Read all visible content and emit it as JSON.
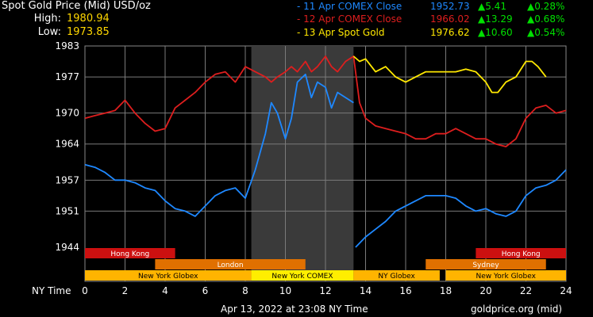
{
  "header": {
    "title": "Spot Gold Price (Mid) USD/oz",
    "high_label": "High:",
    "high_value": "1980.94",
    "low_label": "Low:",
    "low_value": "1973.85"
  },
  "legend": [
    {
      "name": "- 11 Apr COMEX Close",
      "price": "1952.73",
      "change": "▲5.41",
      "pct": "▲0.28%",
      "color": "#1e88ff"
    },
    {
      "name": "- 12 Apr COMEX Close",
      "price": "1966.02",
      "change": "▲13.29",
      "pct": "▲0.68%",
      "color": "#dd1e1e"
    },
    {
      "name": "- 13 Apr Spot Gold",
      "price": "1976.62",
      "change": "▲10.60",
      "pct": "▲0.54%",
      "color": "#ffe800"
    }
  ],
  "footer": {
    "date": "Apr 13, 2022 at 23:08 NY Time",
    "source": "goldprice.org (mid)"
  },
  "chart_data": {
    "type": "line",
    "xlabel": "NY Time",
    "x_ticks": [
      0,
      2,
      4,
      6,
      8,
      10,
      12,
      14,
      16,
      18,
      20,
      22,
      24
    ],
    "xlim": [
      0,
      24
    ],
    "y_ticks": [
      1944,
      1951,
      1957,
      1964,
      1970,
      1977,
      1983
    ],
    "ylim": [
      1944,
      1983
    ],
    "grid": true,
    "highlight_range": [
      8.3,
      13.4
    ],
    "sessions": [
      {
        "name": "Hong Kong",
        "row": 0,
        "start": 0,
        "end": 4.5,
        "color": "#cc1010"
      },
      {
        "name": "Hong Kong",
        "row": 0,
        "start": 19.5,
        "end": 24,
        "color": "#cc1010"
      },
      {
        "name": "London",
        "row": 1,
        "start": 3.5,
        "end": 11,
        "color": "#e07000"
      },
      {
        "name": "Sydney",
        "row": 1,
        "start": 17,
        "end": 23,
        "color": "#e07000"
      },
      {
        "name": "New York Globex",
        "row": 2,
        "start": 0,
        "end": 8.3,
        "color": "#ffb400"
      },
      {
        "name": "New York COMEX",
        "row": 2,
        "start": 8.3,
        "end": 13.4,
        "color": "#ffee00"
      },
      {
        "name": "NY Globex",
        "row": 2,
        "start": 13.4,
        "end": 17.7,
        "color": "#ffb400"
      },
      {
        "name": "New York Globex",
        "row": 2,
        "start": 18,
        "end": 24,
        "color": "#ffb400"
      }
    ],
    "series": [
      {
        "name": "11 Apr COMEX Close",
        "color": "#1e88ff",
        "x": [
          0,
          0.5,
          1,
          1.5,
          2,
          2.5,
          3,
          3.5,
          4,
          4.5,
          5,
          5.5,
          6,
          6.5,
          7,
          7.5,
          8,
          8.5,
          9,
          9.3,
          9.6,
          10,
          10.3,
          10.6,
          11,
          11.3,
          11.6,
          12,
          12.3,
          12.6,
          13,
          13.4,
          13.5,
          14,
          14.5,
          15,
          15.5,
          16,
          16.5,
          17,
          17.5,
          18,
          18.5,
          19,
          19.5,
          20,
          20.5,
          21,
          21.5,
          22,
          22.5,
          23,
          23.5,
          24
        ],
        "y": [
          1960,
          1959.5,
          1958.5,
          1957,
          1957,
          1956.5,
          1955.5,
          1955,
          1953,
          1951.5,
          1951,
          1950,
          1952,
          1954,
          1955,
          1955.5,
          1953.5,
          1959,
          1966,
          1972,
          1970,
          1965,
          1969,
          1976,
          1977.5,
          1973,
          1976,
          1975,
          1971,
          1974,
          1973,
          1972,
          1944,
          1946,
          1947.5,
          1949,
          1951,
          1952,
          1953,
          1954,
          1954,
          1954,
          1953.5,
          1952,
          1951,
          1951.5,
          1950.5,
          1950,
          1951,
          1954,
          1955.5,
          1956,
          1957,
          1959
        ]
      },
      {
        "name": "12 Apr COMEX Close",
        "color": "#dd1e1e",
        "x": [
          0,
          0.5,
          1,
          1.5,
          2,
          2.5,
          3,
          3.5,
          4,
          4.5,
          5,
          5.5,
          6,
          6.5,
          7,
          7.5,
          8,
          8.5,
          9,
          9.3,
          9.6,
          10,
          10.3,
          10.6,
          11,
          11.3,
          11.6,
          12,
          12.3,
          12.6,
          13,
          13.4,
          13.7,
          14,
          14.5,
          15,
          15.5,
          16,
          16.5,
          17,
          17.5,
          18,
          18.5,
          19,
          19.5,
          20,
          20.5,
          21,
          21.5,
          22,
          22.5,
          23,
          23.5,
          24
        ],
        "y": [
          1969,
          1969.5,
          1970,
          1970.5,
          1972.5,
          1970,
          1968,
          1966.5,
          1967,
          1971,
          1972.5,
          1974,
          1976,
          1977.5,
          1978,
          1976,
          1979,
          1978,
          1977,
          1976,
          1977,
          1978,
          1979,
          1978,
          1980,
          1978,
          1979,
          1981,
          1979,
          1978,
          1980,
          1981,
          1972,
          1969,
          1967.5,
          1967,
          1966.5,
          1966,
          1965,
          1965,
          1966,
          1966,
          1967,
          1966,
          1965,
          1965,
          1964,
          1963.5,
          1965,
          1969,
          1971,
          1971.5,
          1970,
          1970.5
        ]
      },
      {
        "name": "13 Apr Spot Gold",
        "color": "#ffe800",
        "x": [
          13.4,
          13.7,
          14,
          14.5,
          15,
          15.5,
          16,
          16.5,
          17,
          17.5,
          18,
          18.5,
          19,
          19.5,
          20,
          20.3,
          20.6,
          21,
          21.5,
          22,
          22.3,
          22.6,
          23
        ],
        "y": [
          1981,
          1980,
          1980.5,
          1978,
          1979,
          1977,
          1976,
          1977,
          1978,
          1978,
          1978,
          1978,
          1978.5,
          1978,
          1976,
          1974,
          1974,
          1976,
          1977,
          1980,
          1980,
          1979,
          1977
        ]
      }
    ]
  }
}
